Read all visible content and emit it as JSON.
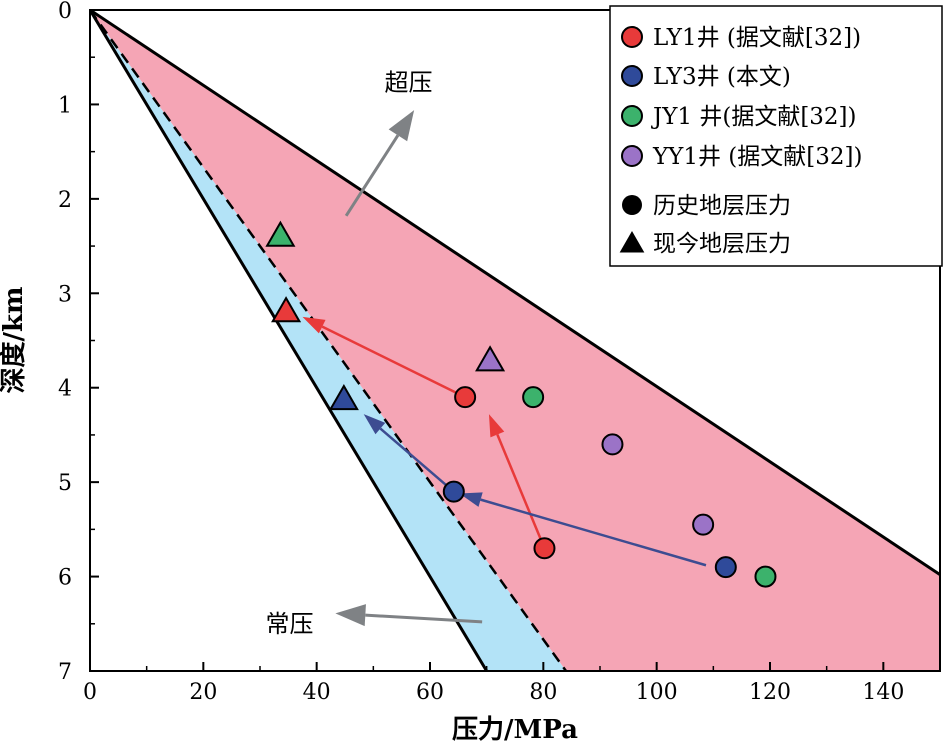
{
  "chart_data": {
    "type": "scatter",
    "xlabel": "压力/MPa",
    "ylabel": "深度/km",
    "xlim": [
      0,
      150
    ],
    "ylim": [
      0,
      7
    ],
    "y_inverted": true,
    "x_ticks": [
      "0",
      "20",
      "40",
      "60",
      "80",
      "100",
      "120",
      "140"
    ],
    "y_ticks": [
      "0",
      "1",
      "2",
      "3",
      "4",
      "5",
      "6",
      "7"
    ],
    "grid": false,
    "legend_position": "top-right",
    "colors": {
      "overpressure_zone": "#f5a5b5",
      "normal_zone": "#b3e3f7",
      "LY1": "#e83a3a",
      "LY3": "#2f4a9a",
      "JY1": "#3cb26c",
      "YY1": "#9b73c7",
      "LY1_arrow": "#e83a3a",
      "LY3_arrow": "#3d4c91",
      "annotation_arrow": "#7f8285"
    },
    "reference_lines": [
      {
        "id": "lithostatic",
        "style": "solid",
        "points": [
          [
            0,
            0
          ],
          [
            150,
            5.98
          ]
        ]
      },
      {
        "id": "hydrostatic",
        "style": "dashed",
        "points": [
          [
            0,
            0
          ],
          [
            84,
            7
          ]
        ]
      },
      {
        "id": "lower-bound",
        "style": "solid",
        "points": [
          [
            0,
            0
          ],
          [
            70,
            7
          ]
        ]
      }
    ],
    "series": [
      {
        "name": "LY1井 (据文献[32])",
        "key": "LY1",
        "historical": [
          [
            80.2,
            5.7
          ],
          [
            66.2,
            4.1
          ]
        ],
        "present": [
          [
            34.6,
            3.2
          ]
        ]
      },
      {
        "name": "LY3井 (本文)",
        "key": "LY3",
        "historical": [
          [
            112.2,
            5.9
          ],
          [
            64.2,
            5.1
          ]
        ],
        "present": [
          [
            44.8,
            4.13
          ]
        ]
      },
      {
        "name": "JY1 井(据文献[32])",
        "key": "JY1",
        "historical": [
          [
            78.2,
            4.1
          ],
          [
            119.2,
            6.0
          ]
        ],
        "present": [
          [
            33.6,
            2.4
          ]
        ]
      },
      {
        "name": "YY1井 (据文献[32])",
        "key": "YY1",
        "historical": [
          [
            92.2,
            4.6
          ],
          [
            108.2,
            5.45
          ]
        ],
        "present": [
          [
            70.6,
            3.72
          ]
        ]
      }
    ],
    "trend_arrows": [
      {
        "key": "LY1",
        "from": [
          80.2,
          5.7
        ],
        "to": [
          70.4,
          4.28
        ]
      },
      {
        "key": "LY1",
        "from": [
          66.2,
          4.1
        ],
        "to": [
          37.5,
          3.25
        ]
      },
      {
        "key": "LY3",
        "from": [
          108.7,
          5.88
        ],
        "to": [
          65.2,
          5.12
        ]
      },
      {
        "key": "LY3",
        "from": [
          63.2,
          5.05
        ],
        "to": [
          48.3,
          4.28
        ]
      }
    ],
    "annotations": [
      {
        "key": "overpressure",
        "text": "超压",
        "at": [
          56.2,
          0.85
        ],
        "arrow_from": [
          45.2,
          2.18
        ],
        "arrow_to": [
          57.2,
          1.06
        ]
      },
      {
        "key": "normal",
        "text": "常压",
        "at": [
          35.2,
          6.5
        ],
        "arrow_from": [
          69.2,
          6.48
        ],
        "arrow_to": [
          43.3,
          6.39
        ]
      }
    ],
    "legend_marker_types": [
      {
        "label": "历史地层压力",
        "marker": "circle"
      },
      {
        "label": "现今地层压力",
        "marker": "triangle"
      }
    ]
  }
}
